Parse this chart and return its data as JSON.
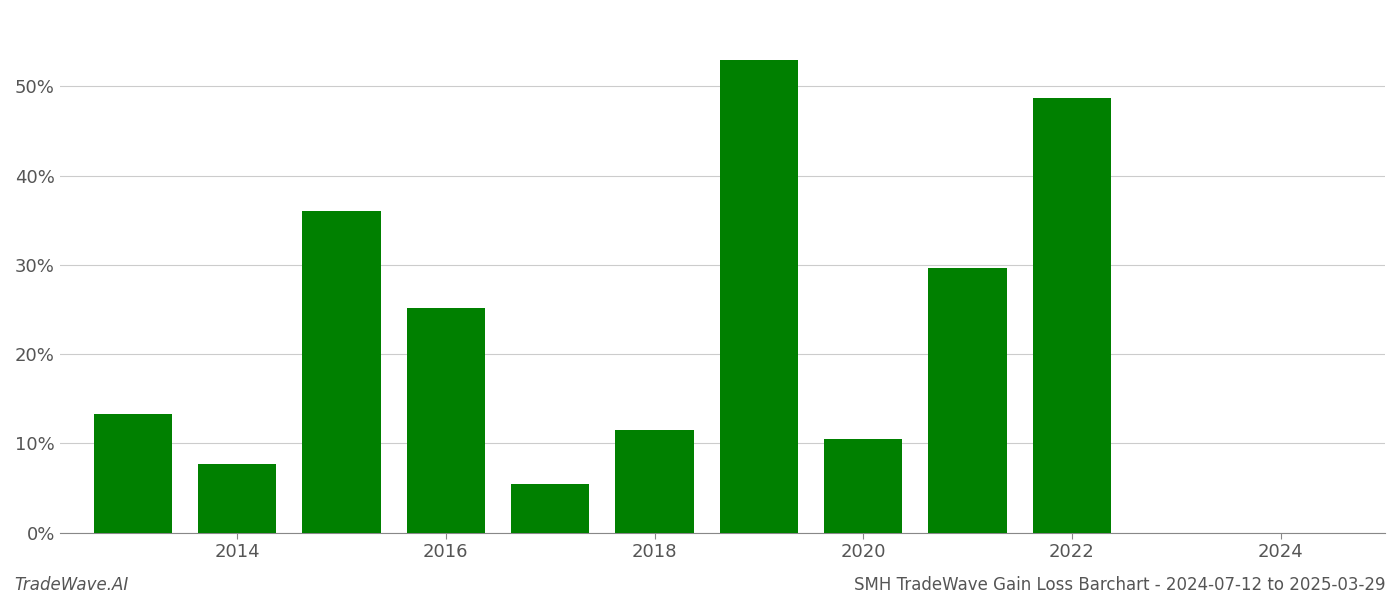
{
  "bar_positions": [
    2013,
    2014,
    2015,
    2016,
    2017,
    2018,
    2019,
    2020,
    2021,
    2022,
    2023
  ],
  "values": [
    13.3,
    7.7,
    36.0,
    25.2,
    5.5,
    11.5,
    53.0,
    10.5,
    29.7,
    48.7,
    0.0
  ],
  "bar_color": "#008000",
  "background_color": "#ffffff",
  "ylabel_ticks": [
    0,
    10,
    20,
    30,
    40,
    50
  ],
  "ylim": [
    0,
    58
  ],
  "xlim": [
    2012.3,
    2025.0
  ],
  "xlabel_ticks": [
    2014,
    2016,
    2018,
    2020,
    2022,
    2024
  ],
  "grid_color": "#cccccc",
  "footer_left": "TradeWave.AI",
  "footer_right": "SMH TradeWave Gain Loss Barchart - 2024-07-12 to 2025-03-29",
  "bar_width": 0.75,
  "figsize": [
    14.0,
    6.0
  ],
  "dpi": 100
}
